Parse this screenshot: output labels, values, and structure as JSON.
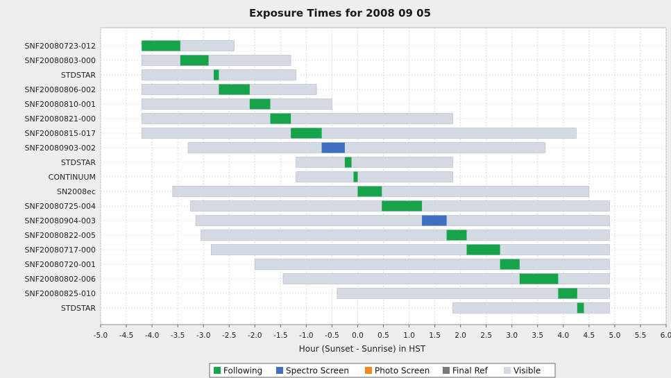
{
  "chart_data": {
    "type": "bar",
    "subtype": "horizontal-gantt",
    "title": "Exposure Times for 2008 09 05",
    "xlabel": "Hour (Sunset - Sunrise) in HST",
    "xlim": [
      -5.0,
      6.0
    ],
    "x_ticks": [
      -5.0,
      -4.5,
      -4.0,
      -3.5,
      -3.0,
      -2.5,
      -2.0,
      -1.5,
      -1.0,
      -0.5,
      0.0,
      0.5,
      1.0,
      1.5,
      2.0,
      2.5,
      3.0,
      3.5,
      4.0,
      4.5,
      5.0,
      5.5,
      6.0
    ],
    "x_tick_labels": [
      "-5.0",
      "-4.5",
      "-4.0",
      "-3.5",
      "-3.0",
      "-2.5",
      "-2.0",
      "-1.5",
      "-1.0",
      "-0.5",
      "0.0",
      "0.5",
      "1.0",
      "1.5",
      "2.0",
      "2.5",
      "3.0",
      "3.5",
      "4.0",
      "4.5",
      "5.0",
      "5.5",
      "6.0"
    ],
    "grid": true,
    "legend_position": "bottom",
    "legend": [
      {
        "name": "Following",
        "color": "#16a34a"
      },
      {
        "name": "Spectro Screen",
        "color": "#3f6fbf"
      },
      {
        "name": "Photo Screen",
        "color": "#f08a1c"
      },
      {
        "name": "Final Ref",
        "color": "#7a7a7a"
      },
      {
        "name": "Visible",
        "color": "#d3dae3"
      }
    ],
    "categories": [
      "SNF20080723-012",
      "SNF20080803-000",
      "STDSTAR",
      "SNF20080806-002",
      "SNF20080810-001",
      "SNF20080821-000",
      "SNF20080815-017",
      "SNF20080903-002",
      "STDSTAR",
      "CONTINUUM",
      "SN2008ec",
      "SNF20080725-004",
      "SNF20080904-003",
      "SNF20080822-005",
      "SNF20080717-000",
      "SNF20080720-001",
      "SNF20080802-006",
      "SNF20080825-010",
      "STDSTAR"
    ],
    "visible": [
      [
        -4.2,
        -2.4
      ],
      [
        -4.2,
        -1.3
      ],
      [
        -4.2,
        -1.2
      ],
      [
        -4.2,
        -0.8
      ],
      [
        -4.2,
        -0.5
      ],
      [
        -4.2,
        1.85
      ],
      [
        -4.2,
        4.25
      ],
      [
        -3.3,
        3.65
      ],
      [
        -1.2,
        1.85
      ],
      [
        -1.2,
        1.85
      ],
      [
        -3.6,
        4.5
      ],
      [
        -3.25,
        4.9
      ],
      [
        -3.15,
        4.9
      ],
      [
        -3.05,
        4.9
      ],
      [
        -2.85,
        4.9
      ],
      [
        -2.0,
        4.9
      ],
      [
        -1.45,
        4.9
      ],
      [
        -0.4,
        4.9
      ],
      [
        1.85,
        4.9
      ]
    ],
    "exposures": [
      {
        "type": "Following",
        "range": [
          -4.2,
          -3.45
        ]
      },
      {
        "type": "Following",
        "range": [
          -3.45,
          -2.9
        ]
      },
      {
        "type": "Following",
        "range": [
          -2.8,
          -2.7
        ]
      },
      {
        "type": "Following",
        "range": [
          -2.7,
          -2.1
        ]
      },
      {
        "type": "Following",
        "range": [
          -2.1,
          -1.7
        ]
      },
      {
        "type": "Following",
        "range": [
          -1.7,
          -1.3
        ]
      },
      {
        "type": "Following",
        "range": [
          -1.3,
          -0.7
        ]
      },
      {
        "type": "Spectro Screen",
        "range": [
          -0.7,
          -0.25
        ]
      },
      {
        "type": "Following",
        "range": [
          -0.25,
          -0.12
        ]
      },
      {
        "type": "Following",
        "range": [
          -0.08,
          0.0
        ]
      },
      {
        "type": "Following",
        "range": [
          0.0,
          0.47
        ]
      },
      {
        "type": "Following",
        "range": [
          0.47,
          1.25
        ]
      },
      {
        "type": "Spectro Screen",
        "range": [
          1.25,
          1.73
        ]
      },
      {
        "type": "Following",
        "range": [
          1.73,
          2.12
        ]
      },
      {
        "type": "Following",
        "range": [
          2.12,
          2.77
        ]
      },
      {
        "type": "Following",
        "range": [
          2.77,
          3.15
        ]
      },
      {
        "type": "Following",
        "range": [
          3.15,
          3.9
        ]
      },
      {
        "type": "Following",
        "range": [
          3.9,
          4.27
        ]
      },
      {
        "type": "Following",
        "range": [
          4.27,
          4.4
        ]
      }
    ]
  }
}
